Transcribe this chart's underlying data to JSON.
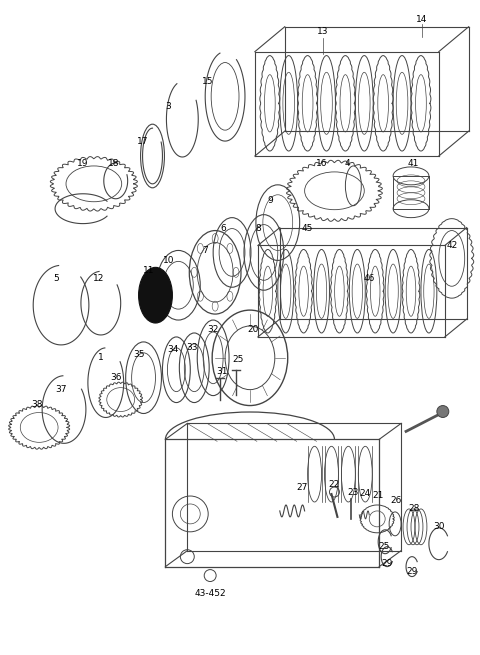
{
  "bg_color": "#ffffff",
  "line_color": "#444444",
  "fig_width": 4.8,
  "fig_height": 6.55,
  "dpi": 100
}
